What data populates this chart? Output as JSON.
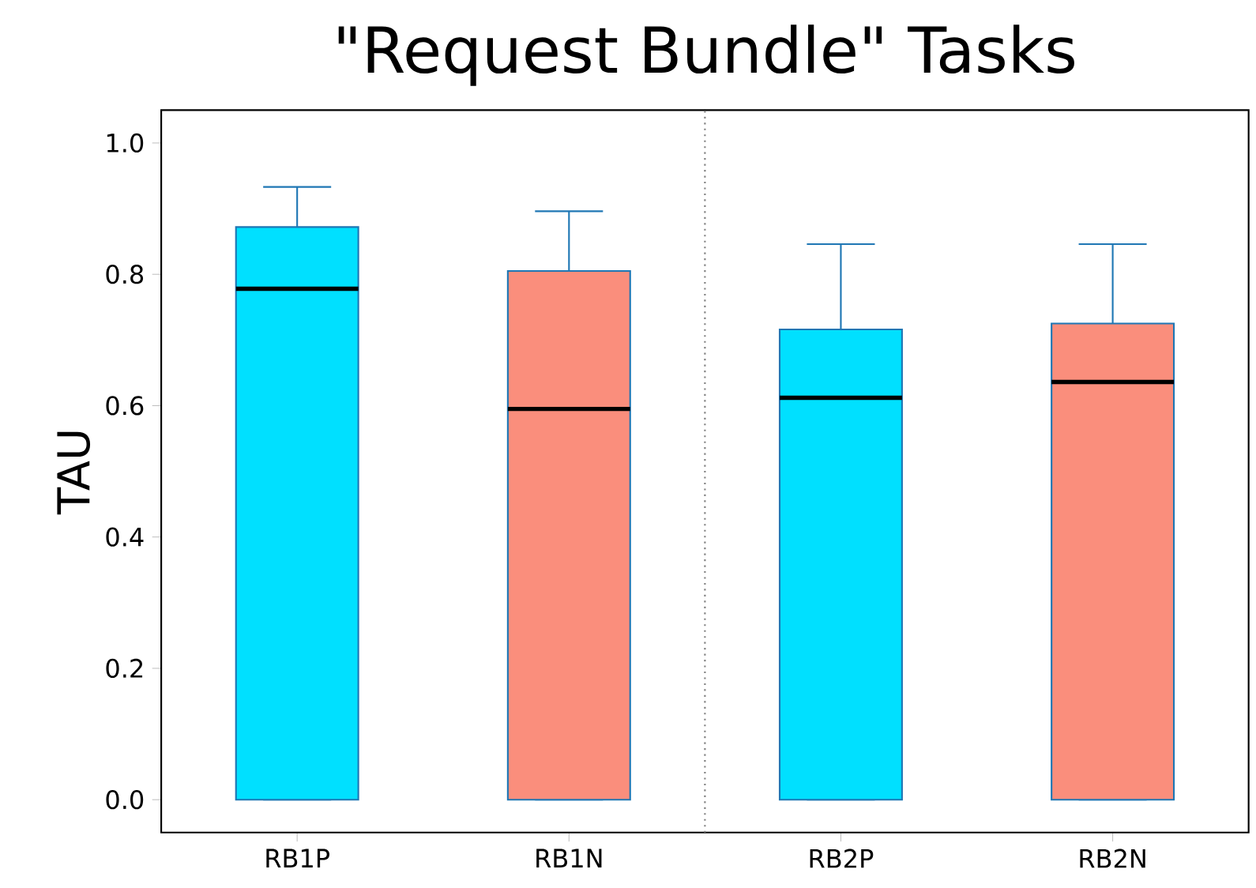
{
  "chart_data": {
    "type": "box",
    "title": "\"Request Bundle\" Tasks",
    "ylabel": "TAU",
    "categories": [
      "RB1P",
      "RB1N",
      "RB2P",
      "RB2N"
    ],
    "colors": [
      "#00e0ff",
      "#fa8e7c",
      "#00e0ff",
      "#fa8e7c"
    ],
    "boxes": [
      {
        "low": 0,
        "q1": 0,
        "median": 0.778,
        "q3": 0.872,
        "high": 0.933
      },
      {
        "low": 0,
        "q1": 0,
        "median": 0.595,
        "q3": 0.805,
        "high": 0.896
      },
      {
        "low": 0,
        "q1": 0,
        "median": 0.612,
        "q3": 0.716,
        "high": 0.846
      },
      {
        "low": 0,
        "q1": 0,
        "median": 0.636,
        "q3": 0.725,
        "high": 0.846
      }
    ],
    "ylim": [
      -0.05,
      1.05
    ],
    "yticks": [
      {
        "value": 0,
        "label": "0.0"
      },
      0.2,
      0.4,
      0.6,
      0.8,
      {
        "value": 1,
        "label": "1.0"
      }
    ],
    "grid": false
  }
}
